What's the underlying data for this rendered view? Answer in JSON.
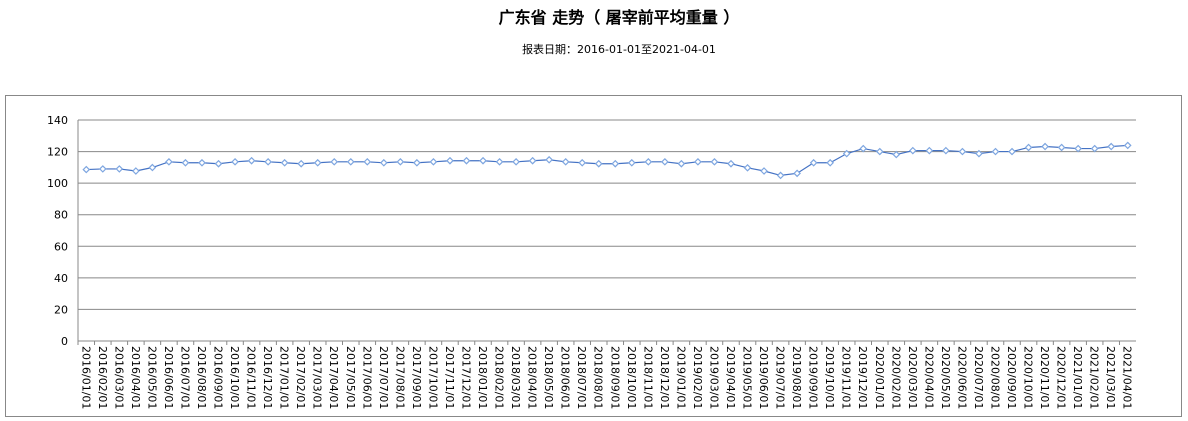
{
  "chart_data": {
    "type": "line",
    "title": "广东省 走势（ 屠宰前平均重量 ）",
    "subtitle": "报表日期：2016-01-01至2021-04-01",
    "ylim": [
      0,
      140
    ],
    "yticks": [
      0,
      20,
      40,
      60,
      80,
      100,
      120,
      140
    ],
    "grid": true,
    "legend": "none",
    "line_color": "#4472C4",
    "marker_color": "#7EA6E0",
    "categories": [
      "2016/01/01",
      "2016/02/01",
      "2016/03/01",
      "2016/04/01",
      "2016/05/01",
      "2016/06/01",
      "2016/07/01",
      "2016/08/01",
      "2016/09/01",
      "2016/10/01",
      "2016/11/01",
      "2016/12/01",
      "2017/01/01",
      "2017/02/01",
      "2017/03/01",
      "2017/04/01",
      "2017/05/01",
      "2017/06/01",
      "2017/07/01",
      "2017/08/01",
      "2017/09/01",
      "2017/10/01",
      "2017/11/01",
      "2017/12/01",
      "2018/01/01",
      "2018/02/01",
      "2018/03/01",
      "2018/04/01",
      "2018/05/01",
      "2018/06/01",
      "2018/07/01",
      "2018/08/01",
      "2018/09/01",
      "2018/10/01",
      "2018/11/01",
      "2018/12/01",
      "2019/01/01",
      "2019/02/01",
      "2019/03/01",
      "2019/04/01",
      "2019/05/01",
      "2019/06/01",
      "2019/07/01",
      "2019/08/01",
      "2019/09/01",
      "2019/10/01",
      "2019/11/01",
      "2019/12/01",
      "2020/01/01",
      "2020/02/01",
      "2020/03/01",
      "2020/04/01",
      "2020/05/01",
      "2020/06/01",
      "2020/07/01",
      "2020/08/01",
      "2020/09/01",
      "2020/10/01",
      "2020/11/01",
      "2020/12/01",
      "2021/01/01",
      "2021/02/01",
      "2021/03/01",
      "2021/04/01"
    ],
    "values": [
      108.6,
      109.0,
      109.0,
      107.7,
      109.9,
      113.5,
      112.9,
      112.9,
      112.3,
      113.5,
      114.2,
      113.5,
      112.9,
      112.3,
      112.9,
      113.5,
      113.5,
      113.5,
      112.9,
      113.5,
      112.9,
      113.5,
      114.2,
      114.2,
      114.2,
      113.5,
      113.5,
      114.2,
      114.8,
      113.5,
      112.9,
      112.3,
      112.3,
      112.9,
      113.5,
      113.5,
      112.3,
      113.5,
      113.5,
      112.3,
      109.7,
      107.7,
      104.9,
      106.2,
      112.9,
      112.9,
      118.7,
      121.9,
      120.0,
      118.1,
      120.6,
      120.6,
      120.6,
      120.0,
      118.7,
      120.0,
      120.0,
      122.6,
      123.2,
      122.6,
      121.9,
      121.9,
      123.2,
      123.9
    ]
  }
}
